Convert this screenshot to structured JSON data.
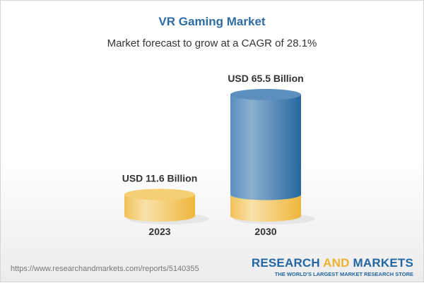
{
  "title": "VR Gaming Market",
  "subtitle": "Market forecast to grow at a CAGR of 28.1%",
  "chart_data": {
    "type": "bar",
    "style": "3d-cylinder",
    "categories": [
      "2023",
      "2030"
    ],
    "values": [
      11.6,
      65.5
    ],
    "data_labels": [
      "USD 11.6 Billion",
      "USD 65.5 Billion"
    ],
    "colors": {
      "base": "#f2c55c",
      "growth": "#3f7fb3"
    }
  },
  "footer": {
    "url": "https://www.researchandmarkets.com/reports/5140355",
    "logo_part1": "RESEARCH ",
    "logo_part2": "AND",
    "logo_part3": " MARKETS",
    "logo_tagline": "THE WORLD'S LARGEST MARKET RESEARCH STORE"
  }
}
